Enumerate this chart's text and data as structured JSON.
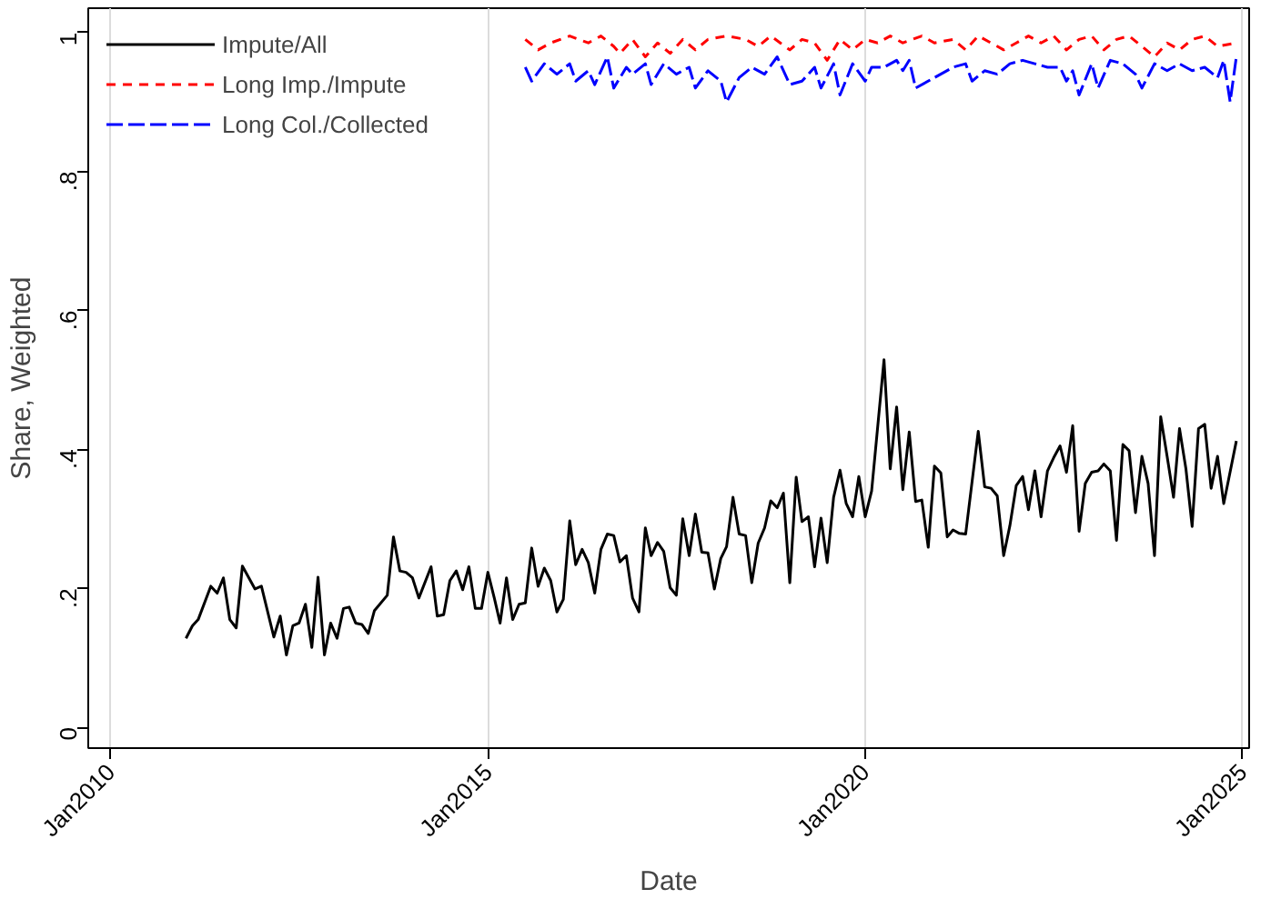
{
  "chart_data": {
    "type": "line",
    "xlabel": "Date",
    "ylabel": "Share, Weighted",
    "xlim": [
      "2009-09-15",
      "2025-02-01"
    ],
    "ylim": [
      -0.03,
      1.035
    ],
    "xticks": [
      {
        "value": "2010-01",
        "label": "Jan2010"
      },
      {
        "value": "2015-01",
        "label": "Jan2015"
      },
      {
        "value": "2020-01",
        "label": "Jan2020"
      },
      {
        "value": "2025-01",
        "label": "Jan2025"
      }
    ],
    "yticks": [
      0,
      {
        "value": 0.2,
        "label": ".2"
      },
      {
        "value": 0.4,
        "label": ".4"
      },
      {
        "value": 0.6,
        "label": ".6"
      },
      {
        "value": 0.8,
        "label": ".8"
      },
      1
    ],
    "grid": "x",
    "legend": "top left",
    "series": [
      {
        "name": "Impute/All",
        "color": "#000000",
        "line_style": "solid",
        "x": [
          "2011-01",
          "2011-02",
          "2011-03",
          "2011-05",
          "2011-06",
          "2011-07",
          "2011-08",
          "2011-09",
          "2011-10",
          "2011-12",
          "2012-01",
          "2012-03",
          "2012-04",
          "2012-05",
          "2012-06",
          "2012-07",
          "2012-08",
          "2012-09",
          "2012-10",
          "2012-11",
          "2012-12",
          "2013-01",
          "2013-02",
          "2013-03",
          "2013-04",
          "2013-05",
          "2013-06",
          "2013-07",
          "2013-09",
          "2013-10",
          "2013-11",
          "2013-12",
          "2014-01",
          "2014-02",
          "2014-04",
          "2014-05",
          "2014-06",
          "2014-07",
          "2014-08",
          "2014-09",
          "2014-10",
          "2014-11",
          "2014-12",
          "2015-01",
          "2015-02",
          "2015-03",
          "2015-04",
          "2015-05",
          "2015-06",
          "2015-07",
          "2015-08",
          "2015-09",
          "2015-10",
          "2015-11",
          "2015-12",
          "2016-01",
          "2016-02",
          "2016-03",
          "2016-04",
          "2016-05",
          "2016-06",
          "2016-07",
          "2016-08",
          "2016-09",
          "2016-10",
          "2016-11",
          "2016-12",
          "2017-01",
          "2017-02",
          "2017-03",
          "2017-04",
          "2017-05",
          "2017-06",
          "2017-07",
          "2017-08",
          "2017-09",
          "2017-10",
          "2017-11",
          "2017-12",
          "2018-01",
          "2018-02",
          "2018-03",
          "2018-04",
          "2018-05",
          "2018-06",
          "2018-07",
          "2018-08",
          "2018-09",
          "2018-10",
          "2018-11",
          "2018-12",
          "2019-01",
          "2019-02",
          "2019-03",
          "2019-04",
          "2019-05",
          "2019-06",
          "2019-07",
          "2019-08",
          "2019-09",
          "2019-10",
          "2019-11",
          "2019-12",
          "2020-01",
          "2020-02",
          "2020-04",
          "2020-05",
          "2020-06",
          "2020-07",
          "2020-08",
          "2020-09",
          "2020-10",
          "2020-11",
          "2020-12",
          "2021-01",
          "2021-02",
          "2021-03",
          "2021-04",
          "2021-05",
          "2021-07",
          "2021-08",
          "2021-09",
          "2021-10",
          "2021-11",
          "2021-12",
          "2022-01",
          "2022-02",
          "2022-03",
          "2022-04",
          "2022-05",
          "2022-06",
          "2022-07",
          "2022-08",
          "2022-09",
          "2022-10",
          "2022-11",
          "2022-12",
          "2023-01",
          "2023-02",
          "2023-03",
          "2023-04",
          "2023-05",
          "2023-06",
          "2023-07",
          "2023-08",
          "2023-09",
          "2023-10",
          "2023-11",
          "2023-12",
          "2024-01",
          "2024-02",
          "2024-03",
          "2024-04",
          "2024-05",
          "2024-06",
          "2024-07",
          "2024-08",
          "2024-09",
          "2024-10",
          "2024-12"
        ],
        "values": [
          0.128,
          0.146,
          0.155,
          0.203,
          0.193,
          0.215,
          0.155,
          0.143,
          0.232,
          0.199,
          0.203,
          0.13,
          0.16,
          0.104,
          0.146,
          0.15,
          0.177,
          0.115,
          0.216,
          0.104,
          0.15,
          0.128,
          0.171,
          0.173,
          0.15,
          0.148,
          0.135,
          0.168,
          0.19,
          0.274,
          0.225,
          0.223,
          0.215,
          0.186,
          0.231,
          0.16,
          0.162,
          0.211,
          0.225,
          0.198,
          0.231,
          0.171,
          0.171,
          0.223,
          0.186,
          0.15,
          0.215,
          0.155,
          0.177,
          0.179,
          0.258,
          0.203,
          0.229,
          0.211,
          0.166,
          0.184,
          0.297,
          0.234,
          0.256,
          0.237,
          0.193,
          0.256,
          0.278,
          0.276,
          0.238,
          0.247,
          0.186,
          0.166,
          0.287,
          0.247,
          0.266,
          0.253,
          0.201,
          0.19,
          0.3,
          0.247,
          0.307,
          0.252,
          0.251,
          0.199,
          0.243,
          0.26,
          0.331,
          0.278,
          0.276,
          0.208,
          0.265,
          0.287,
          0.326,
          0.316,
          0.337,
          0.208,
          0.36,
          0.296,
          0.303,
          0.231,
          0.301,
          0.237,
          0.331,
          0.37,
          0.322,
          0.303,
          0.361,
          0.303,
          0.34,
          0.529,
          0.372,
          0.461,
          0.342,
          0.425,
          0.325,
          0.327,
          0.259,
          0.376,
          0.366,
          0.274,
          0.284,
          0.279,
          0.278,
          0.426,
          0.346,
          0.344,
          0.333,
          0.247,
          0.29,
          0.348,
          0.361,
          0.313,
          0.369,
          0.303,
          0.369,
          0.388,
          0.405,
          0.367,
          0.434,
          0.282,
          0.351,
          0.367,
          0.369,
          0.379,
          0.369,
          0.269,
          0.407,
          0.398,
          0.309,
          0.39,
          0.351,
          0.247,
          0.447,
          0.39,
          0.331,
          0.43,
          0.372,
          0.289,
          0.43,
          0.436,
          0.344,
          0.39,
          0.322,
          0.412
        ]
      },
      {
        "name": "Long Imp./Impute",
        "color": "#ff0000",
        "line_style": "dashed",
        "x": [
          "2015-07",
          "2015-09",
          "2015-11",
          "2016-02",
          "2016-05",
          "2016-07",
          "2016-09",
          "2016-10",
          "2016-12",
          "2017-02",
          "2017-04",
          "2017-06",
          "2017-08",
          "2017-10",
          "2017-12",
          "2018-03",
          "2018-06",
          "2018-08",
          "2018-10",
          "2019-01",
          "2019-03",
          "2019-05",
          "2019-07",
          "2019-09",
          "2019-11",
          "2020-01",
          "2020-03",
          "2020-05",
          "2020-07",
          "2020-10",
          "2020-12",
          "2021-03",
          "2021-05",
          "2021-07",
          "2021-09",
          "2021-11",
          "2022-01",
          "2022-03",
          "2022-05",
          "2022-07",
          "2022-09",
          "2022-11",
          "2023-01",
          "2023-03",
          "2023-05",
          "2023-07",
          "2023-09",
          "2023-11",
          "2024-01",
          "2024-03",
          "2024-05",
          "2024-07",
          "2024-09",
          "2024-12"
        ],
        "values": [
          0.99,
          0.975,
          0.985,
          0.995,
          0.985,
          0.995,
          0.98,
          0.97,
          0.99,
          0.965,
          0.985,
          0.97,
          0.99,
          0.975,
          0.99,
          0.995,
          0.99,
          0.98,
          0.995,
          0.975,
          0.99,
          0.985,
          0.96,
          0.99,
          0.975,
          0.99,
          0.985,
          0.995,
          0.985,
          0.995,
          0.985,
          0.99,
          0.975,
          0.995,
          0.985,
          0.975,
          0.985,
          0.995,
          0.985,
          0.995,
          0.975,
          0.99,
          0.995,
          0.975,
          0.99,
          0.995,
          0.98,
          0.965,
          0.985,
          0.975,
          0.99,
          0.995,
          0.98,
          0.985
        ]
      },
      {
        "name": "Long Col./Collected",
        "color": "#0000ff",
        "line_style": "dashed",
        "x": [
          "2015-07",
          "2015-08",
          "2015-10",
          "2015-12",
          "2016-02",
          "2016-03",
          "2016-05",
          "2016-06",
          "2016-08",
          "2016-09",
          "2016-11",
          "2016-12",
          "2017-02",
          "2017-03",
          "2017-05",
          "2017-07",
          "2017-09",
          "2017-10",
          "2017-12",
          "2018-02",
          "2018-03",
          "2018-05",
          "2018-07",
          "2018-09",
          "2018-11",
          "2019-01",
          "2019-03",
          "2019-05",
          "2019-06",
          "2019-08",
          "2019-09",
          "2019-11",
          "2020-01",
          "2020-02",
          "2020-04",
          "2020-06",
          "2020-07",
          "2020-08",
          "2020-09",
          "2020-12",
          "2021-03",
          "2021-05",
          "2021-06",
          "2021-08",
          "2021-10",
          "2021-12",
          "2022-02",
          "2022-04",
          "2022-06",
          "2022-08",
          "2022-09",
          "2022-10",
          "2022-11",
          "2023-01",
          "2023-02",
          "2023-04",
          "2023-06",
          "2023-08",
          "2023-09",
          "2023-11",
          "2024-01",
          "2024-03",
          "2024-05",
          "2024-07",
          "2024-09",
          "2024-10",
          "2024-11",
          "2024-12"
        ],
        "values": [
          0.95,
          0.93,
          0.955,
          0.94,
          0.955,
          0.93,
          0.945,
          0.925,
          0.965,
          0.92,
          0.95,
          0.94,
          0.955,
          0.925,
          0.955,
          0.94,
          0.95,
          0.92,
          0.945,
          0.93,
          0.9,
          0.935,
          0.95,
          0.94,
          0.965,
          0.925,
          0.93,
          0.95,
          0.92,
          0.955,
          0.91,
          0.955,
          0.93,
          0.95,
          0.95,
          0.96,
          0.945,
          0.96,
          0.92,
          0.935,
          0.95,
          0.955,
          0.93,
          0.945,
          0.94,
          0.955,
          0.96,
          0.955,
          0.95,
          0.95,
          0.93,
          0.945,
          0.91,
          0.955,
          0.92,
          0.96,
          0.955,
          0.94,
          0.92,
          0.955,
          0.945,
          0.955,
          0.945,
          0.95,
          0.935,
          0.96,
          0.9,
          0.965
        ]
      }
    ]
  }
}
